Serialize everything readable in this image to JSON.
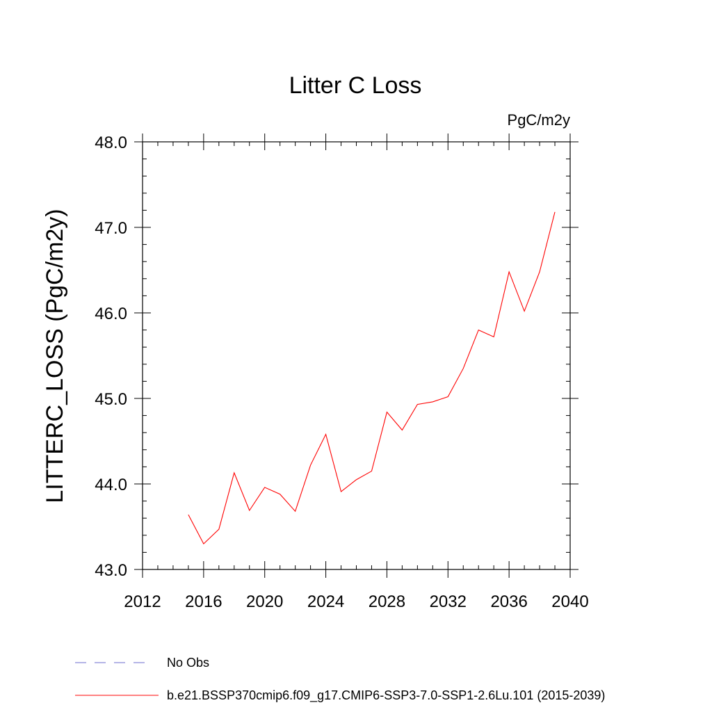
{
  "chart_data": {
    "type": "line",
    "title": "Litter C Loss",
    "units": "PgC/m2y",
    "xlabel": "",
    "ylabel": "LITTERC_LOSS  (PgC/m2y)",
    "xlim": [
      2012,
      2040
    ],
    "ylim": [
      43.0,
      48.0
    ],
    "x_ticks": [
      "2012",
      "2016",
      "2020",
      "2024",
      "2028",
      "2032",
      "2036",
      "2040"
    ],
    "y_ticks": [
      "43.0",
      "44.0",
      "45.0",
      "46.0",
      "47.0",
      "48.0"
    ],
    "grid": false,
    "legend_position": "bottom",
    "series": [
      {
        "name": "b.e21.BSSP370cmip6.f09_g17.CMIP6-SSP3-7.0-SSP1-2.6Lu.101 (2015-2039)",
        "color": "#ff0000",
        "style": "solid",
        "x": [
          2015,
          2016,
          2017,
          2018,
          2019,
          2020,
          2021,
          2022,
          2023,
          2024,
          2025,
          2026,
          2027,
          2028,
          2029,
          2030,
          2031,
          2032,
          2033,
          2034,
          2035,
          2036,
          2037,
          2038,
          2039
        ],
        "y": [
          43.64,
          43.3,
          43.47,
          44.13,
          43.69,
          43.96,
          43.88,
          43.68,
          44.22,
          44.58,
          43.91,
          44.05,
          44.15,
          44.84,
          44.63,
          44.93,
          44.96,
          45.02,
          45.35,
          45.8,
          45.72,
          46.48,
          46.02,
          46.48,
          47.18
        ]
      }
    ],
    "legend": [
      {
        "label": "No Obs",
        "color": "#6a6acd",
        "style": "dashed"
      },
      {
        "label": "b.e21.BSSP370cmip6.f09_g17.CMIP6-SSP3-7.0-SSP1-2.6Lu.101 (2015-2039)",
        "color": "#ff0000",
        "style": "solid"
      }
    ]
  }
}
